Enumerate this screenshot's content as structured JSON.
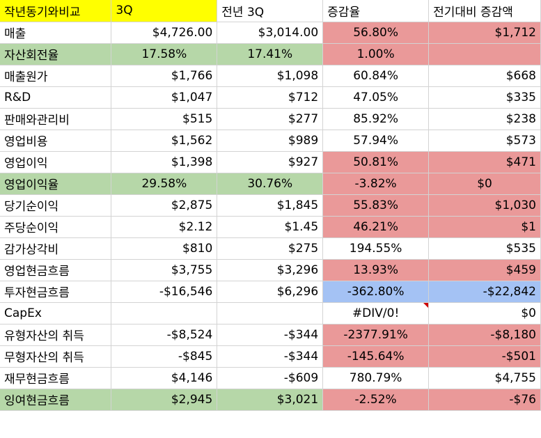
{
  "header": [
    "작년동기와비교",
    "3Q",
    "전년 3Q",
    "증감율",
    "전기대비 증감액"
  ],
  "rows": [
    {
      "label": "매출",
      "cur": "$4,726.00",
      "prev": "$3,014.00",
      "rate": "56.80%",
      "diff": "$1,712"
    },
    {
      "label": "자산회전율",
      "cur": "17.58%",
      "prev": "17.41%",
      "rate": "1.00%",
      "diff": ""
    },
    {
      "label": "매출원가",
      "cur": "$1,766",
      "prev": "$1,098",
      "rate": "60.84%",
      "diff": "$668"
    },
    {
      "label": "R&D",
      "cur": "$1,047",
      "prev": "$712",
      "rate": "47.05%",
      "diff": "$335"
    },
    {
      "label": "판매와관리비",
      "cur": "$515",
      "prev": "$277",
      "rate": "85.92%",
      "diff": "$238"
    },
    {
      "label": "영업비용",
      "cur": "$1,562",
      "prev": "$989",
      "rate": "57.94%",
      "diff": "$573"
    },
    {
      "label": "영업이익",
      "cur": "$1,398",
      "prev": "$927",
      "rate": "50.81%",
      "diff": "$471"
    },
    {
      "label": "영업이익율",
      "cur": "29.58%",
      "prev": "30.76%",
      "rate": "-3.82%",
      "diff": "$0"
    },
    {
      "label": "당기순이익",
      "cur": "$2,875",
      "prev": "$1,845",
      "rate": "55.83%",
      "diff": "$1,030"
    },
    {
      "label": "주당순이익",
      "cur": "$2.12",
      "prev": "$1.45",
      "rate": "46.21%",
      "diff": "$1"
    },
    {
      "label": "감가상각비",
      "cur": "$810",
      "prev": "$275",
      "rate": "194.55%",
      "diff": "$535"
    },
    {
      "label": "영업현금흐름",
      "cur": "$3,755",
      "prev": "$3,296",
      "rate": "13.93%",
      "diff": "$459"
    },
    {
      "label": "투자현금흐름",
      "cur": "-$16,546",
      "prev": "$6,296",
      "rate": "-362.80%",
      "diff": "-$22,842"
    },
    {
      "label": "CapEx",
      "cur": "",
      "prev": "",
      "rate": "#DIV/0!",
      "diff": "$0"
    },
    {
      "label": "유형자산의 취득",
      "cur": "-$8,524",
      "prev": "-$344",
      "rate": "-2377.91%",
      "diff": "-$8,180"
    },
    {
      "label": "무형자산의 취득",
      "cur": "-$845",
      "prev": "-$344",
      "rate": "-145.64%",
      "diff": "-$501"
    },
    {
      "label": "재무현금흐름",
      "cur": "$4,146",
      "prev": "-$609",
      "rate": "780.79%",
      "diff": "$4,755"
    },
    {
      "label": "잉여현금흐름",
      "cur": "$2,945",
      "prev": "$3,021",
      "rate": "-2.52%",
      "diff": "-$76"
    }
  ],
  "colors": {
    "header_yellow": "#ffff00",
    "highlight_green": "#b6d7a8",
    "highlight_red": "#ea9999",
    "highlight_blue": "#a4c2f4",
    "gridline": "#d3d3d3",
    "comment_marker": "#cc0000"
  },
  "icons": {
    "comment_marker_cell": "CapEx rate cell (#DIV/0!) shows a red corner triangle"
  }
}
